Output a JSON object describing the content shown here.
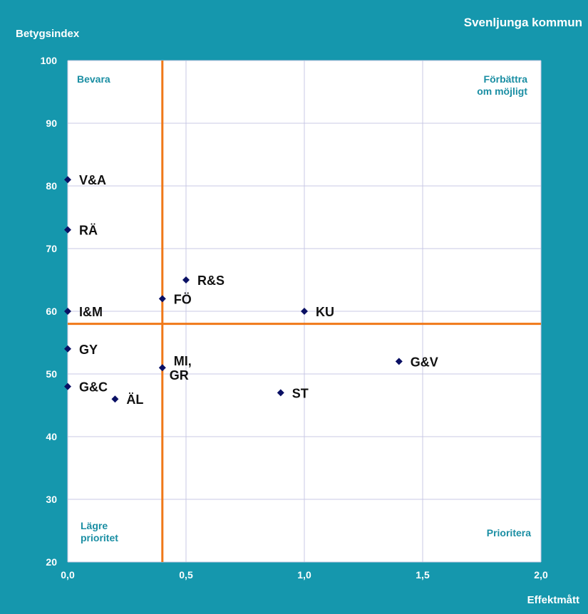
{
  "chart_data": {
    "type": "scatter",
    "title": "Svenljunga kommun",
    "xlabel": "Effektmått",
    "ylabel": "Betygsindex",
    "xlim": [
      0,
      2
    ],
    "ylim": [
      20,
      100
    ],
    "x_ticks": [
      "0,0",
      "0,5",
      "1,0",
      "1,5",
      "2,0"
    ],
    "y_ticks": [
      "20",
      "30",
      "40",
      "50",
      "60",
      "70",
      "80",
      "90",
      "100"
    ],
    "grid": true,
    "reference_lines": {
      "x": 0.4,
      "y": 58
    },
    "quadrant_labels": {
      "top_left": [
        "Bevara"
      ],
      "top_right": [
        "Förbättra",
        "om möjligt"
      ],
      "bottom_left": [
        "Lägre",
        "prioritet"
      ],
      "bottom_right": [
        "Prioritera"
      ]
    },
    "points": [
      {
        "label": "V&A",
        "x": 0.0,
        "y": 81
      },
      {
        "label": "RÄ",
        "x": 0.0,
        "y": 73
      },
      {
        "label": "I&M",
        "x": 0.0,
        "y": 60
      },
      {
        "label": "GY",
        "x": 0.0,
        "y": 54
      },
      {
        "label": "G&C",
        "x": 0.0,
        "y": 48
      },
      {
        "label": "ÄL",
        "x": 0.2,
        "y": 46
      },
      {
        "label": "FÖ",
        "x": 0.4,
        "y": 62
      },
      {
        "label": "MI,\nGR",
        "x": 0.4,
        "y": 51
      },
      {
        "label": "R&S",
        "x": 0.5,
        "y": 65
      },
      {
        "label": "KU",
        "x": 1.0,
        "y": 60
      },
      {
        "label": "ST",
        "x": 0.9,
        "y": 47
      },
      {
        "label": "G&V",
        "x": 1.4,
        "y": 52
      }
    ],
    "colors": {
      "background": "#1597ad",
      "plot_area": "#ffffff",
      "gridline": "#c8c8e4",
      "reference_line": "#f07818",
      "marker": "#0a1064",
      "quadrant_text": "#1a8ea3"
    }
  }
}
